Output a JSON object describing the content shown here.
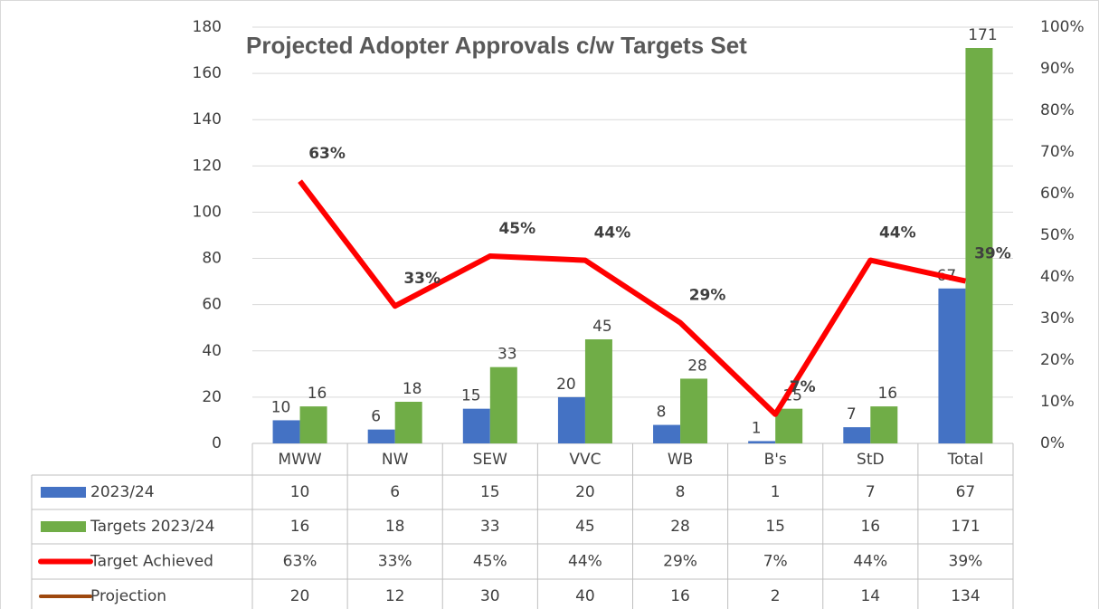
{
  "chart_data": {
    "type": "bar",
    "title": "Projected Adopter Approvals c/w Targets Set",
    "categories": [
      "MWW",
      "NW",
      "SEW",
      "VVC",
      "WB",
      "B's",
      "StD",
      "Total"
    ],
    "series": [
      {
        "name": "2023/24",
        "type": "bar",
        "color": "#4472c4",
        "values": [
          10,
          6,
          15,
          20,
          8,
          1,
          7,
          67
        ]
      },
      {
        "name": "Targets 2023/24",
        "type": "bar",
        "color": "#70ad47",
        "values": [
          16,
          18,
          33,
          45,
          28,
          15,
          16,
          171
        ]
      },
      {
        "name": "Target Achieved",
        "type": "line",
        "axis": "y2",
        "color": "#ff0000",
        "values": [
          63,
          33,
          45,
          44,
          29,
          7,
          44,
          39
        ],
        "value_labels": [
          "63%",
          "33%",
          "45%",
          "44%",
          "29%",
          "7%",
          "44%",
          "39%"
        ]
      },
      {
        "name": "Projection",
        "type": "table",
        "color": "#9e480e",
        "values": [
          20,
          12,
          30,
          40,
          16,
          2,
          14,
          134
        ]
      }
    ],
    "ylim": [
      0,
      180
    ],
    "yticks": [
      0,
      20,
      40,
      60,
      80,
      100,
      120,
      140,
      160,
      180
    ],
    "y2lim": [
      0,
      100
    ],
    "y2ticks": [
      {
        "value": 0,
        "label": "0%"
      },
      {
        "value": 10,
        "label": "10%"
      },
      {
        "value": 20,
        "label": "20%"
      },
      {
        "value": 30,
        "label": "30%"
      },
      {
        "value": 40,
        "label": "40%"
      },
      {
        "value": 50,
        "label": "50%"
      },
      {
        "value": 60,
        "label": "60%"
      },
      {
        "value": 70,
        "label": "70%"
      },
      {
        "value": 80,
        "label": "80%"
      },
      {
        "value": 90,
        "label": "90%"
      },
      {
        "value": 100,
        "label": "100%"
      }
    ],
    "grid": true,
    "data_table": true
  }
}
